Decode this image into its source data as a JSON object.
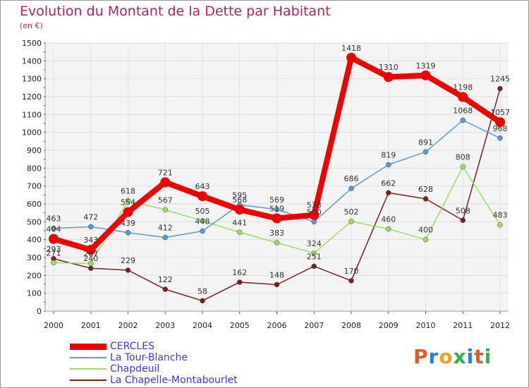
{
  "header": {
    "title": "Evolution du Montant de la Dette par Habitant",
    "unit": "(en €)"
  },
  "logo": {
    "letters": [
      "P",
      "r",
      "o",
      "x",
      "i",
      "t",
      "i"
    ],
    "colors": [
      "#e05a2b",
      "#2b7de0",
      "#f0a020",
      "#2bb34a",
      "#2b7de0",
      "#e05a2b",
      "#2bb34a"
    ]
  },
  "chart_data": {
    "type": "line",
    "title": "Evolution du Montant de la Dette par Habitant",
    "ylabel": "(en €)",
    "xlabel": "",
    "ylim": [
      0,
      1500
    ],
    "yticks": [
      0,
      100,
      200,
      300,
      400,
      500,
      600,
      700,
      800,
      900,
      1000,
      1100,
      1200,
      1300,
      1400,
      1500
    ],
    "categories": [
      "2000",
      "2001",
      "2002",
      "2003",
      "2004",
      "2005",
      "2006",
      "2007",
      "2008",
      "2009",
      "2010",
      "2011",
      "2012"
    ],
    "grid": true,
    "legend": "bottom-left",
    "series": [
      {
        "name": "CERCLES",
        "color": "#ee0000",
        "values": [
          404,
          343,
          554,
          721,
          643,
          568,
          519,
          538,
          1418,
          1310,
          1319,
          1198,
          1057
        ],
        "labels": [
          "404",
          "343",
          "554",
          "721",
          "643",
          "568",
          "519",
          "538",
          "1418",
          "1310",
          "1319",
          "1198",
          "1057"
        ]
      },
      {
        "name": "La Tour-Blanche",
        "color": "#5b9bd5",
        "values": [
          463,
          472,
          439,
          412,
          448,
          595,
          569,
          500,
          686,
          819,
          891,
          1068,
          968
        ],
        "labels": [
          "463",
          "472",
          "439",
          "412",
          "448",
          "595",
          "569",
          "500",
          "686",
          "819",
          "891",
          "1068",
          "968"
        ]
      },
      {
        "name": "Chapdeuil",
        "color": "#99dd66",
        "values": [
          271,
          267,
          618,
          567,
          505,
          441,
          383,
          324,
          502,
          460,
          400,
          808,
          483
        ],
        "labels": [
          "271",
          "267",
          "618",
          "567",
          "505",
          "441",
          "383",
          "324",
          "502",
          "460",
          "400",
          "808",
          "483"
        ]
      },
      {
        "name": "La Chapelle-Montabourlet",
        "color": "#7a2020",
        "values": [
          293,
          240,
          229,
          122,
          58,
          162,
          148,
          251,
          170,
          662,
          628,
          508,
          1245
        ],
        "labels": [
          "293",
          "240",
          "229",
          "122",
          "58",
          "162",
          "148",
          "251",
          "170",
          "662",
          "628",
          "508",
          "1245"
        ]
      }
    ]
  }
}
